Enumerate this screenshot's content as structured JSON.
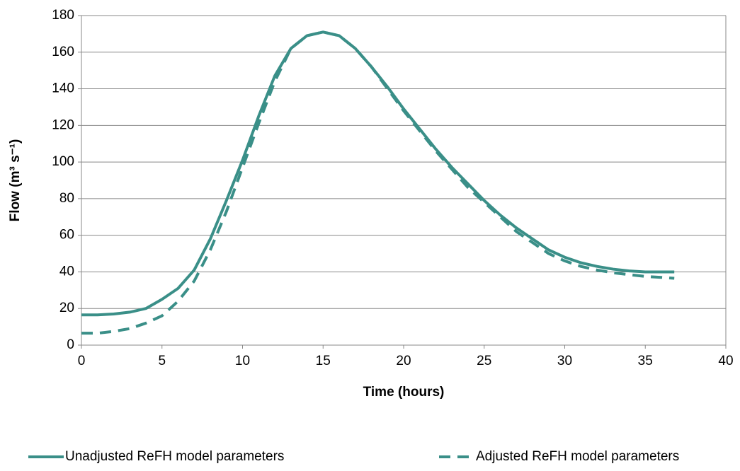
{
  "chart_data": {
    "type": "line",
    "x_label": "Time (hours)",
    "y_label": "Flow (m³ s⁻¹)",
    "x": [
      0,
      1,
      2,
      3,
      4,
      5,
      6,
      7,
      8,
      9,
      10,
      11,
      12,
      13,
      14,
      15,
      16,
      17,
      18,
      19,
      20,
      21,
      22,
      23,
      24,
      25,
      26,
      27,
      28,
      29,
      30,
      31,
      32,
      33,
      34,
      35,
      36,
      36.8
    ],
    "series": [
      {
        "name": "Unadjusted ReFH model parameters",
        "color": "#3a8f88",
        "dash": false,
        "values": [
          16.5,
          16.5,
          17,
          18,
          20,
          25,
          31,
          41,
          58,
          79,
          101,
          125,
          147,
          162,
          169,
          171,
          169,
          162,
          152,
          141,
          129,
          118,
          107,
          97,
          88,
          79,
          71,
          64,
          58,
          52,
          48,
          45,
          43,
          41.5,
          40.5,
          40,
          40,
          40
        ]
      },
      {
        "name": "Adjusted ReFH model parameters",
        "color": "#3a8f88",
        "dash": true,
        "values": [
          6.5,
          6.5,
          7.5,
          9,
          12,
          16,
          24,
          35,
          52,
          73,
          97,
          121,
          144,
          162,
          169,
          171,
          169,
          162,
          152,
          140,
          128,
          117,
          106,
          96,
          86,
          78,
          70,
          62,
          56,
          50,
          46,
          43,
          41,
          39.5,
          38.5,
          37.5,
          37,
          36.5
        ]
      }
    ],
    "xlim": [
      0,
      40
    ],
    "xticks": [
      0,
      5,
      10,
      15,
      20,
      25,
      30,
      35,
      40
    ],
    "ylim": [
      0,
      180
    ],
    "yticks": [
      0,
      20,
      40,
      60,
      80,
      100,
      120,
      140,
      160,
      180
    ],
    "grid": true,
    "legend": "bottom"
  }
}
